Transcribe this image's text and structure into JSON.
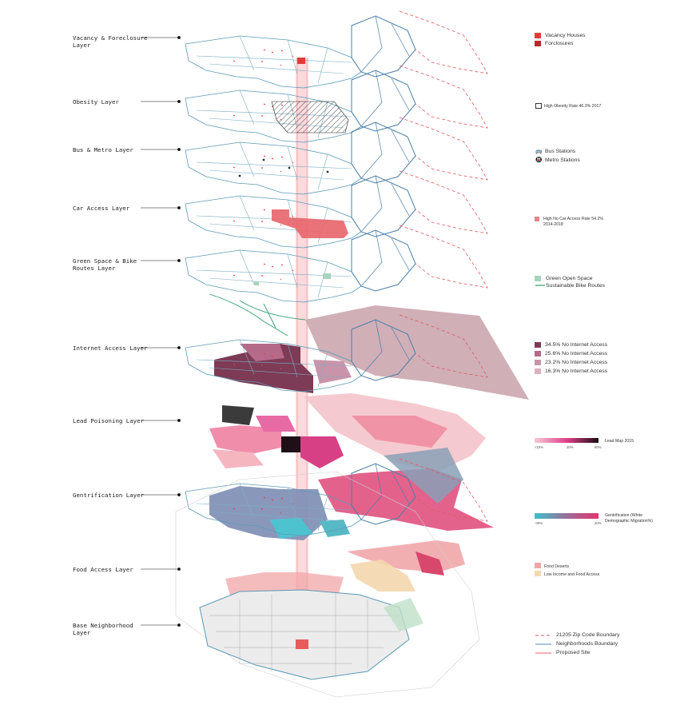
{
  "layers": [
    {
      "name_lines": [
        "Vacancy & Foreclosure",
        "Layer"
      ]
    },
    {
      "name_lines": [
        "Obesity Layer"
      ]
    },
    {
      "name_lines": [
        "Bus & Metro Layer"
      ]
    },
    {
      "name_lines": [
        "Car Access Layer"
      ]
    },
    {
      "name_lines": [
        "Green Space & Bike",
        "Routes Layer"
      ]
    },
    {
      "name_lines": [
        "Internet Access Layer"
      ]
    },
    {
      "name_lines": [
        "Lead Poisoning Layer"
      ]
    },
    {
      "name_lines": [
        "Gentrification Layer"
      ]
    },
    {
      "name_lines": [
        "Food Access Layer"
      ]
    },
    {
      "name_lines": [
        "Base Neighborhood",
        "Layer"
      ]
    }
  ],
  "legend": {
    "vacancy": [
      {
        "label": "Vacancy Houses",
        "color": "#e23c3c"
      },
      {
        "label": "Forclosures",
        "color": "#b8282c"
      }
    ],
    "obesity": {
      "label": "High Obesity Rate 46.3% 2017"
    },
    "transit": [
      {
        "label": "Bus Stations",
        "icon": "bus-icon"
      },
      {
        "label": "Metro Stations",
        "icon": "metro-icon"
      }
    ],
    "car": {
      "label_lines": [
        "High No Car Access Rate 54.2%",
        "2014-2018"
      ],
      "color": "#e8828a"
    },
    "green": [
      {
        "label": "Green Open Space",
        "color": "#a9d3bd"
      },
      {
        "label": "Sustainable Bike Routes",
        "color": "#2f9e6e"
      }
    ],
    "internet": [
      {
        "label": "34.5% No Internet Access",
        "color": "#7d3b55"
      },
      {
        "label": "25.6% No Internet Access",
        "color": "#b56a8a"
      },
      {
        "label": "23.2% No Internet Access",
        "color": "#c994aa"
      },
      {
        "label": "16.3% No Internet Access",
        "color": "#d8b2bf"
      }
    ],
    "lead": {
      "label": "Lead Map 2015",
      "ticks": [
        "<15%",
        "20%",
        "80%"
      ]
    },
    "gentrification": {
      "label_lines": [
        "Gentrification (White",
        "Demographic Migration%)"
      ],
      "ticks": [
        "-30%",
        "30%"
      ]
    },
    "food": [
      {
        "label": "Food Deserts",
        "color": "#f0a5a5"
      },
      {
        "label": "Low Income and Food Access",
        "color": "#f5d9b0"
      }
    ],
    "base": [
      {
        "label": "21205 Zip Code Boundary",
        "style": "dashed",
        "color": "#e0575b"
      },
      {
        "label": "Neighborhoods Boundary",
        "style": "solid",
        "color": "#4f86b8"
      },
      {
        "label": "Proposed Site",
        "style": "solid",
        "color": "#f08080"
      }
    ]
  }
}
